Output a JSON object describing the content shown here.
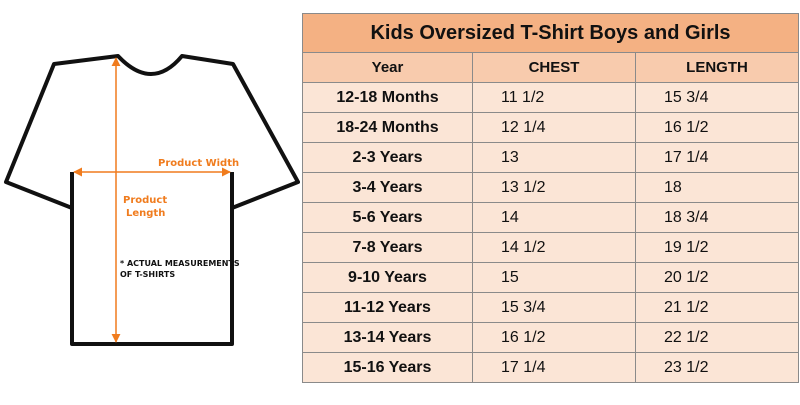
{
  "diagram": {
    "width_label": "Product Width",
    "length_label_line1": "Product",
    "length_label_line2": "Length",
    "note": "* ACTUAL MEASUREMENTS\nOF T-SHIRTS",
    "arrow_color": "#f07c1e"
  },
  "table": {
    "title": "Kids Oversized T-Shirt Boys and Girls",
    "headers": [
      "Year",
      "CHEST",
      "LENGTH"
    ],
    "rows": [
      {
        "year": "12-18 Months",
        "chest": "11 1/2",
        "length": "15 3/4"
      },
      {
        "year": "18-24 Months",
        "chest": "12 1/4",
        "length": "16 1/2"
      },
      {
        "year": "2-3 Years",
        "chest": "13",
        "length": "17 1/4"
      },
      {
        "year": "3-4 Years",
        "chest": "13 1/2",
        "length": "18"
      },
      {
        "year": "5-6 Years",
        "chest": "14",
        "length": "18 3/4"
      },
      {
        "year": "7-8 Years",
        "chest": "14 1/2",
        "length": "19 1/2"
      },
      {
        "year": "9-10 Years",
        "chest": "15",
        "length": "20 1/2"
      },
      {
        "year": "11-12 Years",
        "chest": "15 3/4",
        "length": "21 1/2"
      },
      {
        "year": "13-14 Years",
        "chest": "16 1/2",
        "length": "22 1/2"
      },
      {
        "year": "15-16 Years",
        "chest": "17 1/4",
        "length": "23 1/2"
      }
    ],
    "colors": {
      "title_bg": "#f4b183",
      "header_bg": "#f8cbad",
      "row_bg": "#fbe5d6"
    }
  }
}
